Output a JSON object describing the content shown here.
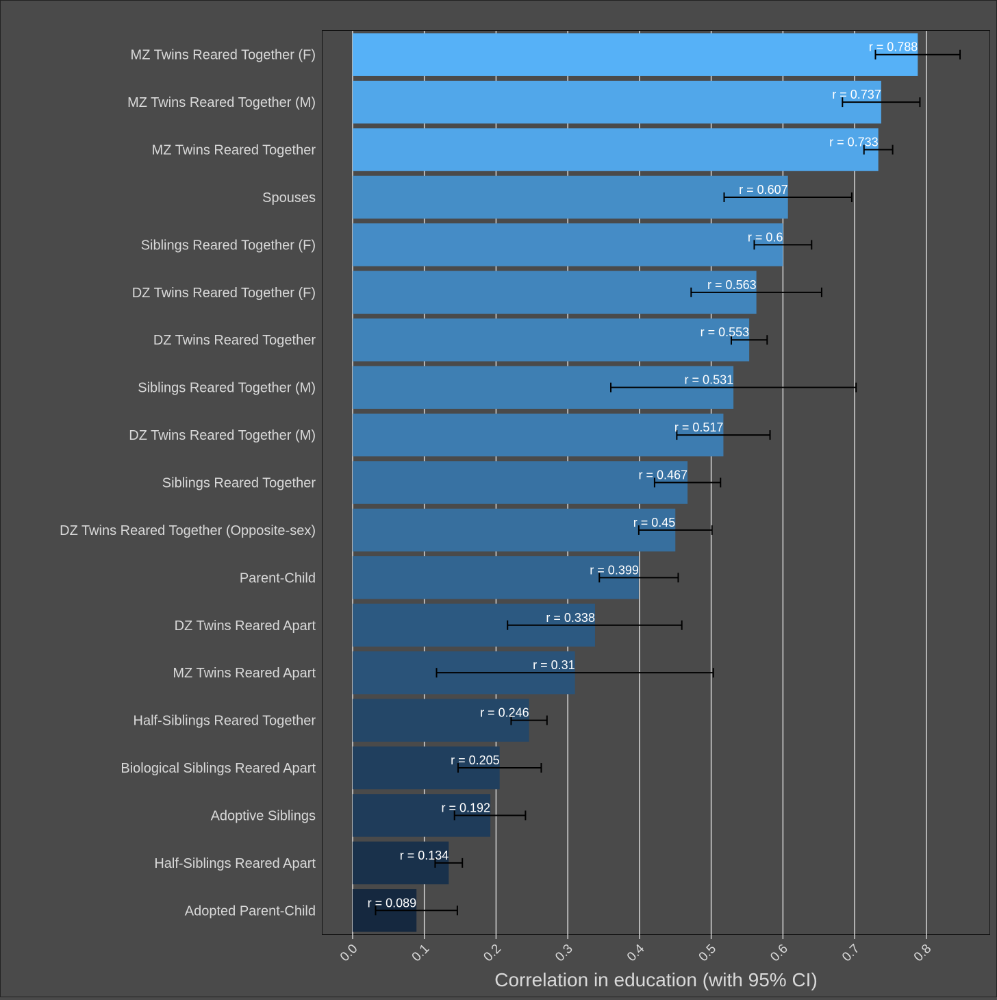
{
  "chart_data": {
    "type": "bar",
    "orientation": "horizontal",
    "title": "",
    "xlabel": "Correlation in education (with 95% CI)",
    "ylabel": "",
    "xlim": [
      -0.042,
      0.888
    ],
    "xticks": [
      0.0,
      0.1,
      0.2,
      0.3,
      0.4,
      0.5,
      0.6,
      0.7,
      0.8
    ],
    "xtick_labels": [
      "0.0",
      "0.1",
      "0.2",
      "0.3",
      "0.4",
      "0.5",
      "0.6",
      "0.7",
      "0.8"
    ],
    "grid": true,
    "color_scale": {
      "low": "#15283f",
      "high": "#56b1f7"
    },
    "categories": [
      "MZ Twins Reared Together (F)",
      "MZ Twins Reared Together (M)",
      "MZ Twins Reared Together",
      "Spouses",
      "Siblings Reared Together (F)",
      "DZ Twins Reared Together (F)",
      "DZ Twins Reared Together",
      "Siblings Reared Together (M)",
      "DZ Twins Reared Together (M)",
      "Siblings Reared Together",
      "DZ Twins Reared Together (Opposite-sex)",
      "Parent-Child",
      "DZ Twins Reared Apart",
      "MZ Twins Reared Apart",
      "Half-Siblings Reared Together",
      "Biological Siblings Reared Apart",
      "Adoptive Siblings",
      "Half-Siblings Reared Apart",
      "Adopted Parent-Child"
    ],
    "values": [
      0.788,
      0.737,
      0.733,
      0.607,
      0.6,
      0.563,
      0.553,
      0.531,
      0.517,
      0.467,
      0.45,
      0.399,
      0.338,
      0.31,
      0.246,
      0.205,
      0.192,
      0.134,
      0.089
    ],
    "value_labels": [
      "r = 0.788",
      "r = 0.737",
      "r = 0.733",
      "r = 0.607",
      "r = 0.6",
      "r = 0.563",
      "r = 0.553",
      "r = 0.531",
      "r = 0.517",
      "r = 0.467",
      "r = 0.45",
      "r = 0.399",
      "r = 0.338",
      "r = 0.31",
      "r = 0.246",
      "r = 0.205",
      "r = 0.192",
      "r = 0.134",
      "r = 0.089"
    ],
    "ci_lower": [
      0.729,
      0.683,
      0.713,
      0.518,
      0.56,
      0.472,
      0.528,
      0.36,
      0.452,
      0.421,
      0.399,
      0.344,
      0.216,
      0.117,
      0.221,
      0.147,
      0.142,
      0.115,
      0.032
    ],
    "ci_upper": [
      0.847,
      0.791,
      0.753,
      0.696,
      0.64,
      0.654,
      0.578,
      0.702,
      0.582,
      0.513,
      0.501,
      0.454,
      0.459,
      0.503,
      0.271,
      0.263,
      0.241,
      0.153,
      0.146
    ]
  }
}
